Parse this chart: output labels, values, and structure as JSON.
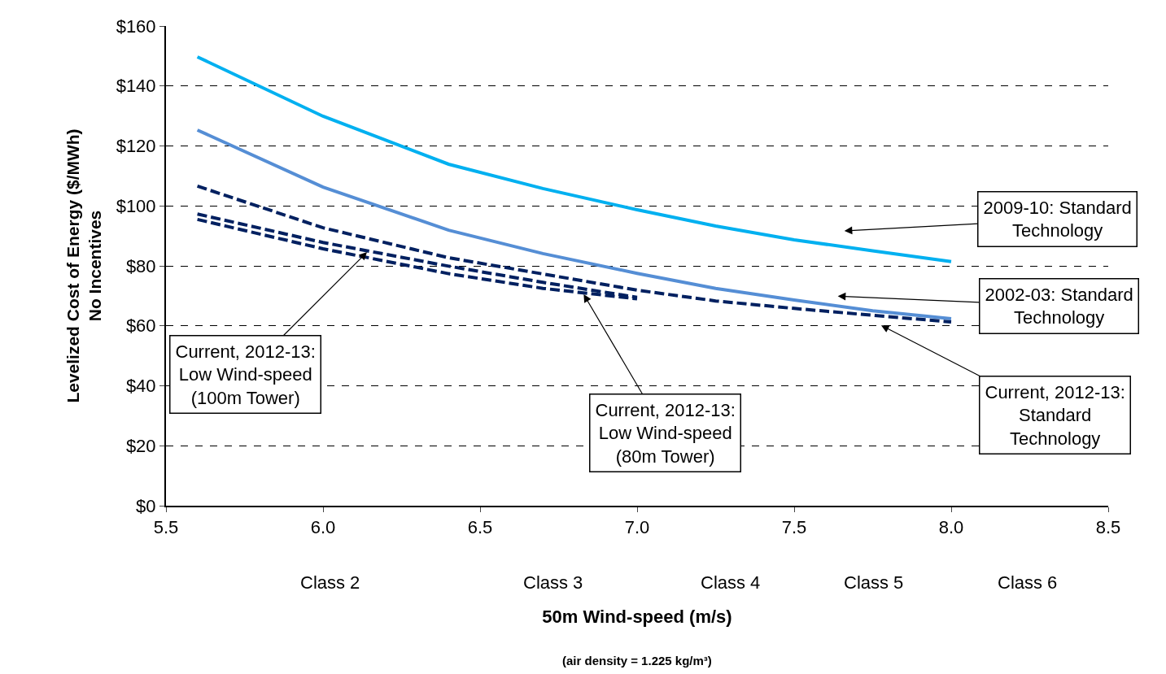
{
  "chart_data": {
    "type": "line",
    "xlabel": "50m Wind-speed (m/s)",
    "ylabel": "Levelized Cost of Energy ($/MWh)\nNo Incentives",
    "x": [
      5.6,
      6.0,
      6.4,
      6.7,
      7.0,
      7.25,
      7.5,
      7.75,
      8.0
    ],
    "series": [
      {
        "color": "#00b0f0",
        "line_style": "solid",
        "values": [
          149.7,
          129.9,
          113.9,
          105.8,
          98.7,
          93.3,
          88.7,
          85,
          81.4
        ]
      },
      {
        "color": "#558ed5",
        "line_style": "solid",
        "values": [
          125.3,
          106.3,
          91.9,
          84.1,
          77.5,
          72.5,
          68.6,
          65,
          62.4
        ]
      },
      {
        "color": "#002060",
        "line_style": "dashed",
        "values": [
          106.6,
          92.7,
          82.7,
          77.3,
          71.9,
          68.3,
          65.8,
          63.5,
          61.3
        ]
      },
      {
        "color": "#002060",
        "line_style": "dashed",
        "x": [
          5.6,
          6.0,
          6.4,
          6.7,
          7.0
        ],
        "values": [
          97.3,
          87.8,
          79.9,
          74.5,
          69.5
        ]
      },
      {
        "color": "#002060",
        "line_style": "dashed",
        "x": [
          5.6,
          6.0,
          6.4,
          6.7,
          7.0
        ],
        "values": [
          95.5,
          85.7,
          77.4,
          72.5,
          69.0
        ]
      }
    ],
    "xlim": [
      5.5,
      8.5
    ],
    "xticks": [
      5.5,
      {
        "value": 6.0,
        "label": "6.0"
      },
      6.5,
      {
        "value": 7.0,
        "label": "7.0"
      },
      7.5,
      {
        "value": 8.0,
        "label": "8.0"
      },
      8.5
    ],
    "ylim": [
      0,
      160
    ],
    "yticks": [
      {
        "value": 0,
        "label": "$0"
      },
      {
        "value": 20,
        "label": "$20"
      },
      {
        "value": 40,
        "label": "$40"
      },
      {
        "value": 60,
        "label": "$60"
      },
      {
        "value": 80,
        "label": "$80"
      },
      {
        "value": 100,
        "label": "$100"
      },
      {
        "value": 120,
        "label": "$120"
      },
      {
        "value": 140,
        "label": "$140"
      },
      {
        "value": 160,
        "label": "$160"
      }
    ],
    "grid": "y",
    "marker": "none",
    "annotations": [
      "2009-10: Standard\nTechnology",
      "2002-03: Standard\nTechnology",
      "Current, 2012-13:\nStandard\nTechnology",
      {
        "text": "Current, 2012-13:\nLow Wind-speed\n(100m Tower)",
        "x": 6.14,
        "y": 84.6
      },
      {
        "text": "Current, 2012-13:\nLow Wind-speed\n(80m Tower)",
        "x": 6.83,
        "y": 70.5
      },
      "Class 2",
      "Class 3",
      "Class 4",
      "Class 5",
      "Class 6",
      "(air density = 1.225 kg/m³)"
    ]
  }
}
